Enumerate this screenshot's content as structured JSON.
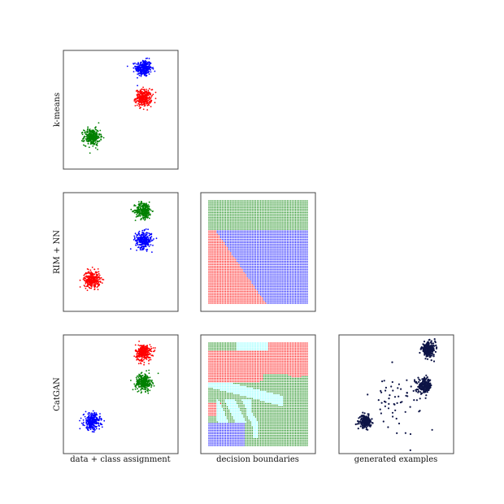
{
  "colors": {
    "red": "#ff0000",
    "green": "#008000",
    "blue": "#0000ff",
    "cyan": "#80ffff",
    "navy": "#0d1446"
  },
  "row_labels": [
    "k-means",
    "RIM + NN",
    "CatGAN"
  ],
  "column_labels": [
    "data + class assignment",
    "decision boundaries",
    "generated examples"
  ],
  "chart_data": [
    {
      "type": "scatter",
      "panel": "k-means / data + class assignment",
      "ylabel": "k-means",
      "xlabel": "",
      "series": [
        {
          "color": "blue",
          "center": [
            0.7,
            0.85
          ],
          "spread": 0.035,
          "count": 300
        },
        {
          "color": "red",
          "center": [
            0.7,
            0.6
          ],
          "spread": 0.035,
          "count": 300
        },
        {
          "color": "green",
          "center": [
            0.25,
            0.27
          ],
          "spread": 0.035,
          "count": 300
        }
      ]
    },
    {
      "type": "scatter",
      "panel": "RIM + NN / data + class assignment",
      "ylabel": "RIM + NN",
      "xlabel": "",
      "series": [
        {
          "color": "green",
          "center": [
            0.7,
            0.85
          ],
          "spread": 0.035,
          "count": 300
        },
        {
          "color": "blue",
          "center": [
            0.7,
            0.6
          ],
          "spread": 0.035,
          "count": 300
        },
        {
          "color": "red",
          "center": [
            0.25,
            0.27
          ],
          "spread": 0.035,
          "count": 300
        }
      ]
    },
    {
      "type": "heatmap",
      "panel": "RIM + NN / decision boundaries",
      "xlabel": "",
      "grid": {
        "x_range": [
          0,
          1
        ],
        "y_range": [
          0,
          1
        ],
        "cols": 60,
        "rows": 62
      },
      "classes": [
        "red",
        "green",
        "blue"
      ]
    },
    {
      "type": "scatter",
      "panel": "CatGAN / data + class assignment",
      "ylabel": "CatGAN",
      "xlabel": "data + class assignment",
      "series": [
        {
          "color": "red",
          "center": [
            0.7,
            0.85
          ],
          "spread": 0.035,
          "count": 300
        },
        {
          "color": "green",
          "center": [
            0.7,
            0.6
          ],
          "spread": 0.035,
          "count": 300
        },
        {
          "color": "blue",
          "center": [
            0.25,
            0.27
          ],
          "spread": 0.035,
          "count": 300
        }
      ]
    },
    {
      "type": "heatmap",
      "panel": "CatGAN / decision boundaries",
      "xlabel": "decision boundaries",
      "grid": {
        "x_range": [
          0,
          1
        ],
        "y_range": [
          0,
          1
        ],
        "cols": 60,
        "rows": 62
      },
      "classes": [
        "red",
        "green",
        "blue",
        "cyan"
      ]
    },
    {
      "type": "scatter",
      "panel": "CatGAN / generated examples",
      "xlabel": "generated examples",
      "series": [
        {
          "color": "navy",
          "center": [
            0.78,
            0.88
          ],
          "spread": 0.03,
          "count": 220
        },
        {
          "color": "navy",
          "center": [
            0.75,
            0.57
          ],
          "spread": 0.03,
          "count": 200
        },
        {
          "color": "navy",
          "center": [
            0.23,
            0.27
          ],
          "spread": 0.025,
          "count": 180
        },
        {
          "color": "navy",
          "center": [
            0.5,
            0.45
          ],
          "spread": 0.12,
          "count": 60
        }
      ]
    }
  ]
}
